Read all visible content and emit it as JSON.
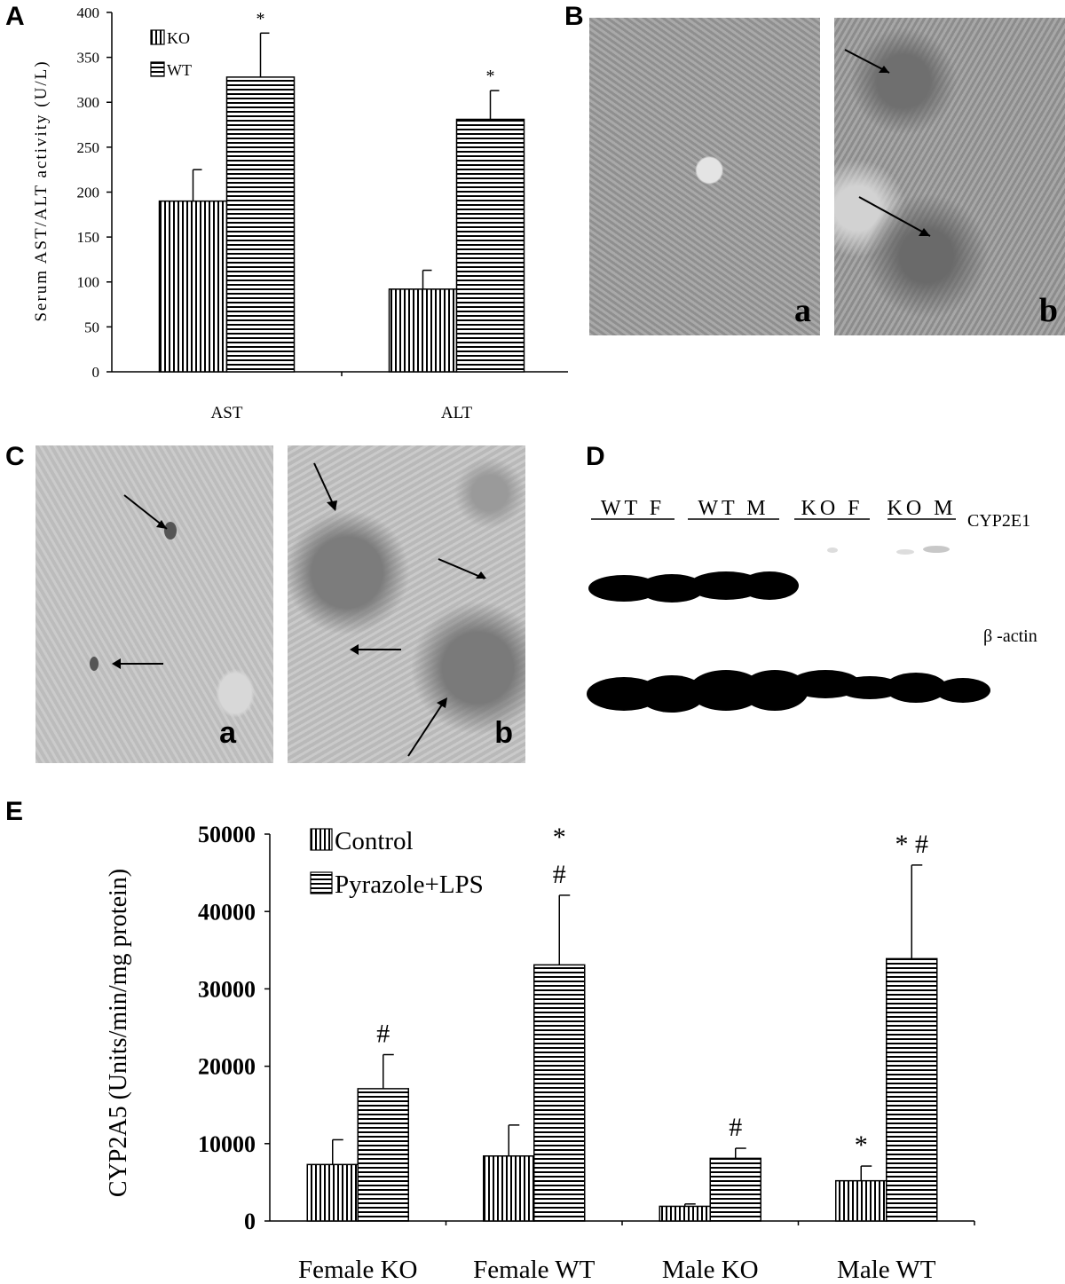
{
  "panels": {
    "A": "A",
    "B": "B",
    "C": "C",
    "D": "D",
    "E": "E"
  },
  "chart_data": [
    {
      "panel": "A",
      "type": "bar",
      "categories": [
        "AST",
        "ALT"
      ],
      "series": [
        {
          "name": "KO",
          "values": [
            190,
            92
          ],
          "errors": [
            35,
            21
          ],
          "sig": [
            "",
            ""
          ]
        },
        {
          "name": "WT",
          "values": [
            328,
            281
          ],
          "errors": [
            49,
            32
          ],
          "sig": [
            "*",
            "*"
          ]
        }
      ],
      "ylabel": "Serum AST/ALT activity (U/L)",
      "ylim": [
        0,
        400
      ],
      "yticks": [
        0,
        50,
        100,
        150,
        200,
        250,
        300,
        350,
        400
      ],
      "legend": "top-left",
      "grid": false
    },
    {
      "panel": "E",
      "type": "bar",
      "categories": [
        "Female KO",
        "Female WT",
        "Male KO",
        "Male WT"
      ],
      "series": [
        {
          "name": "Control",
          "values": [
            7300,
            8400,
            1900,
            5200
          ],
          "errors": [
            3200,
            4000,
            300,
            1900
          ],
          "sig": [
            "",
            "",
            "",
            "*"
          ]
        },
        {
          "name": "Pyrazole+LPS",
          "values": [
            17100,
            33100,
            8100,
            33900
          ],
          "errors": [
            4400,
            9000,
            1300,
            12100
          ],
          "sig": [
            "#",
            "*\n#",
            "#",
            "* #"
          ]
        }
      ],
      "ylabel": "CYP2A5 (Units/min/mg protein)",
      "ylim": [
        0,
        50000
      ],
      "yticks": [
        0,
        10000,
        20000,
        30000,
        40000,
        50000
      ],
      "legend": "top-left",
      "grid": false
    }
  ],
  "micrographs_B": {
    "a": "a",
    "b": "b"
  },
  "micrographs_C": {
    "a": "a",
    "b": "b"
  },
  "blot": {
    "groups": [
      "WT F",
      "WT M",
      "KO F",
      "KO M"
    ],
    "bands": [
      "CYP2E1",
      "β -actin"
    ]
  }
}
